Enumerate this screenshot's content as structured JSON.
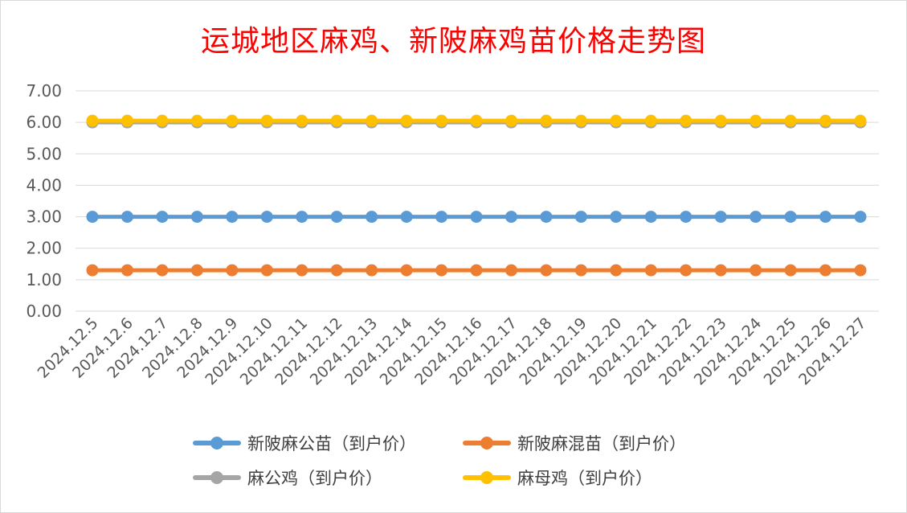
{
  "chart_data": {
    "type": "line",
    "title": "运城地区麻鸡、新陂麻鸡苗价格走势图",
    "xlabel": "",
    "ylabel": "",
    "ylim": [
      0,
      7
    ],
    "yticks": [
      "0.00",
      "1.00",
      "2.00",
      "3.00",
      "4.00",
      "5.00",
      "6.00",
      "7.00"
    ],
    "grid": true,
    "legend_position": "bottom",
    "categories": [
      "2024.12.5",
      "2024.12.6",
      "2024.12.7",
      "2024.12.8",
      "2024.12.9",
      "2024.12.10",
      "2024.12.11",
      "2024.12.12",
      "2024.12.13",
      "2024.12.14",
      "2024.12.15",
      "2024.12.16",
      "2024.12.17",
      "2024.12.18",
      "2024.12.19",
      "2024.12.20",
      "2024.12.21",
      "2024.12.22",
      "2024.12.23",
      "2024.12.24",
      "2024.12.25",
      "2024.12.26",
      "2024.12.27"
    ],
    "series": [
      {
        "name": "新陂麻公苗（到户价）",
        "color": "#5b9bd5",
        "values": [
          3,
          3,
          3,
          3,
          3,
          3,
          3,
          3,
          3,
          3,
          3,
          3,
          3,
          3,
          3,
          3,
          3,
          3,
          3,
          3,
          3,
          3,
          3
        ]
      },
      {
        "name": "新陂麻混苗（到户价）",
        "color": "#ed7d31",
        "values": [
          1.3,
          1.3,
          1.3,
          1.3,
          1.3,
          1.3,
          1.3,
          1.3,
          1.3,
          1.3,
          1.3,
          1.3,
          1.3,
          1.3,
          1.3,
          1.3,
          1.3,
          1.3,
          1.3,
          1.3,
          1.3,
          1.3,
          1.3
        ]
      },
      {
        "name": "麻公鸡（到户价）",
        "color": "#a5a5a5",
        "values": [
          6,
          6,
          6,
          6,
          6,
          6,
          6,
          6,
          6,
          6,
          6,
          6,
          6,
          6,
          6,
          6,
          6,
          6,
          6,
          6,
          6,
          6,
          6
        ]
      },
      {
        "name": "麻母鸡（到户价）",
        "color": "#ffc000",
        "values": [
          6.05,
          6.05,
          6.05,
          6.05,
          6.05,
          6.05,
          6.05,
          6.05,
          6.05,
          6.05,
          6.05,
          6.05,
          6.05,
          6.05,
          6.05,
          6.05,
          6.05,
          6.05,
          6.05,
          6.05,
          6.05,
          6.05,
          6.05
        ]
      }
    ]
  }
}
